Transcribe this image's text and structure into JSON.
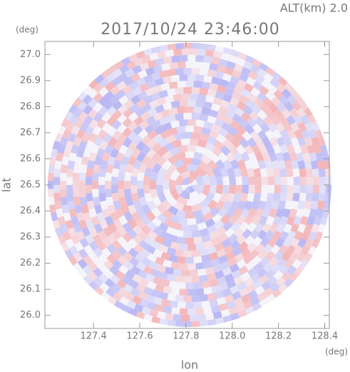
{
  "chart_data": {
    "type": "radar-ppi",
    "title": "2017/10/24 23:46:00",
    "altitude_label": "ALT(km) 2.0",
    "x_label": "lon",
    "y_label": "lat",
    "x_unit": "(deg)",
    "y_unit": "(deg)",
    "xlim": [
      127.19,
      128.42
    ],
    "ylim": [
      25.95,
      27.05
    ],
    "xticks": [
      127.4,
      127.6,
      127.8,
      {
        "value": 128,
        "label": "128.0"
      },
      128.2,
      128.4
    ],
    "yticks": [
      {
        "value": 26,
        "label": "26.0"
      },
      26.1,
      26.2,
      26.3,
      26.4,
      26.5,
      26.6,
      26.7,
      26.8,
      26.9,
      {
        "value": 27,
        "label": "27.0"
      }
    ],
    "colors": {
      "positive": "#f28c8c",
      "negative": "#8f8fef"
    }
  }
}
